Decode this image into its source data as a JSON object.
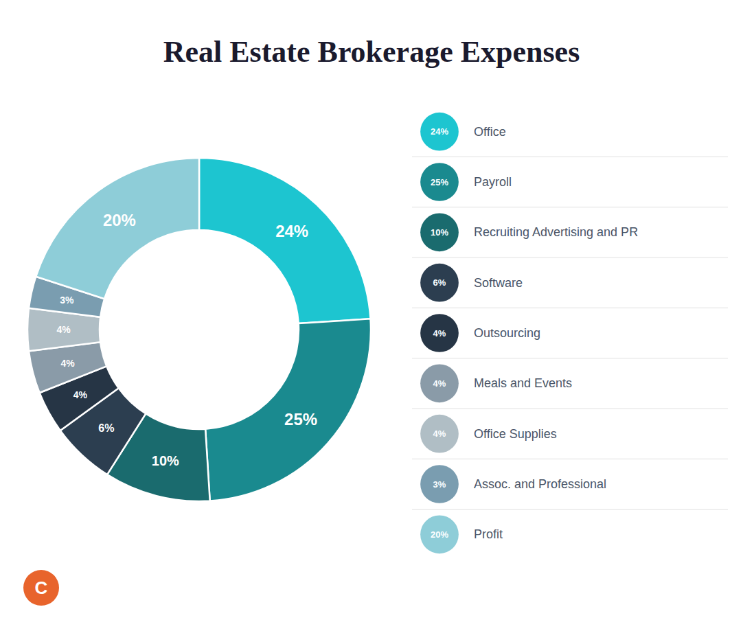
{
  "chart_data": {
    "type": "pie",
    "title": "Real Estate Brokerage Expenses",
    "categories": [
      "Office",
      "Payroll",
      "Recruiting Advertising and PR",
      "Software",
      "Outsourcing",
      "Meals and Events",
      "Office Supplies",
      "Assoc. and Professional",
      "Profit"
    ],
    "values": [
      24,
      25,
      10,
      6,
      4,
      4,
      4,
      3,
      20
    ],
    "value_labels": [
      "24%",
      "25%",
      "10%",
      "6%",
      "4%",
      "4%",
      "4%",
      "3%",
      "20%"
    ],
    "colors": [
      "#1dc5d0",
      "#1a8a8f",
      "#1a6b6e",
      "#2c3e50",
      "#263545",
      "#8a9ba8",
      "#b0bec5",
      "#7a9db0",
      "#8ecdd8"
    ],
    "data_labels": true,
    "legend": "right",
    "annotations": [
      {
        "text": "C",
        "color": "#e8642c"
      }
    ]
  }
}
